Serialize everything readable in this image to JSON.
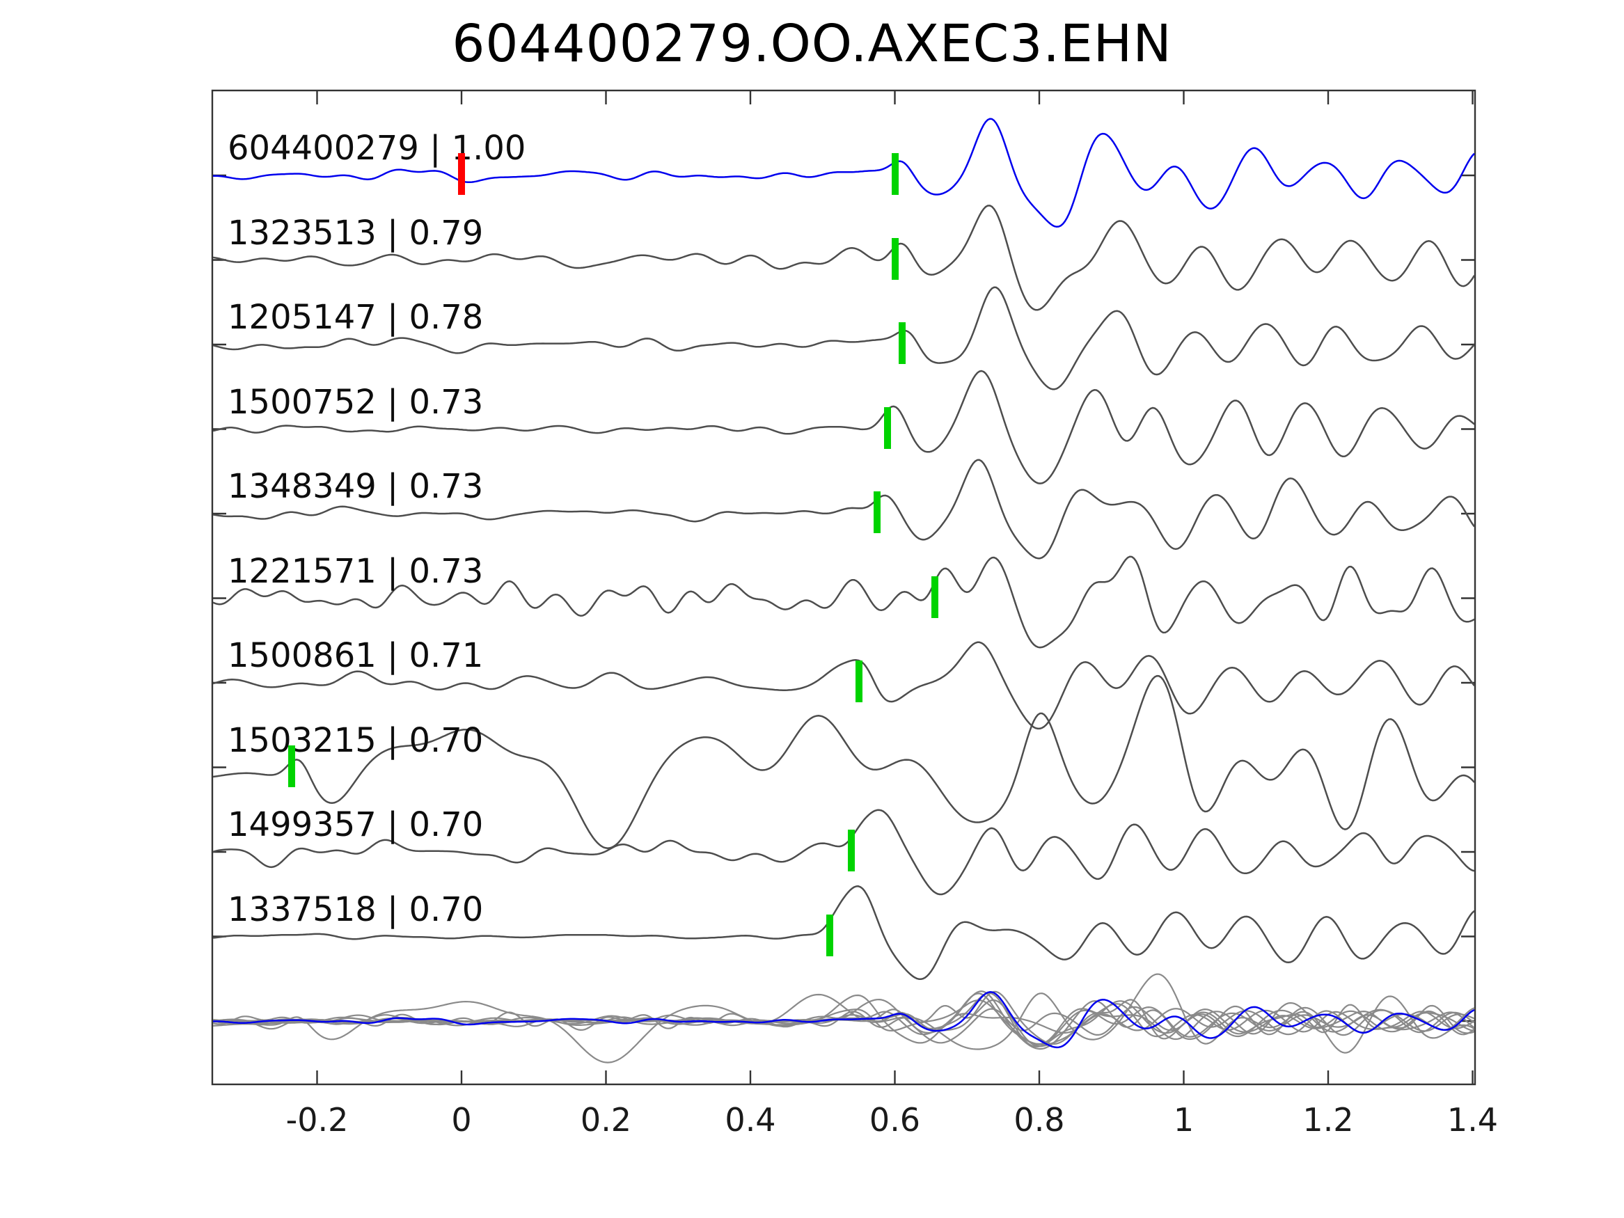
{
  "header": {
    "title": "604400279.OO.AXEC3.EHN"
  },
  "chart_data": {
    "type": "line",
    "title": "604400279.OO.AXEC3.EHN",
    "xlabel": "",
    "ylabel": "",
    "xlim": [
      -0.345,
      1.404
    ],
    "grid": false,
    "legend": "none",
    "x_ticks": [
      {
        "value": -0.2,
        "label": "-0.2"
      },
      {
        "value": 0,
        "label": "0"
      },
      {
        "value": 0.2,
        "label": "0.2"
      },
      {
        "value": 0.4,
        "label": "0.4"
      },
      {
        "value": 0.6,
        "label": "0.6"
      },
      {
        "value": 0.8,
        "label": "0.8"
      },
      {
        "value": 1,
        "label": "1"
      },
      {
        "value": 1.2,
        "label": "1.2"
      },
      {
        "value": 1.4,
        "label": "1.4"
      }
    ],
    "colors": {
      "axis": "#333333",
      "detection_trace": "#4d4d4d",
      "template_trace": "#0000ee",
      "stack_trace": "#8a8a8a",
      "pick_marker": "#00d300",
      "template_origin_marker": "#ff0000",
      "label_text": "#0d0d0d"
    },
    "traces": [
      {
        "id": "604400279",
        "cc": "1.00",
        "label": "604400279 | 1.00",
        "role": "template",
        "pick": 0.6,
        "template_marker": 0.0,
        "synth": {
          "seed": 11,
          "pre": 0.14,
          "post": 1.0,
          "burst": 0.73,
          "fscale": 1.0,
          "amp": 1.0
        }
      },
      {
        "id": "1323513",
        "cc": "0.79",
        "label": "1323513 | 0.79",
        "role": "detection",
        "pick": 0.6,
        "synth": {
          "seed": 22,
          "pre": 0.2,
          "post": 1.0,
          "burst": 0.73,
          "fscale": 1.0,
          "amp": 1.0
        }
      },
      {
        "id": "1205147",
        "cc": "0.78",
        "label": "1205147 | 0.78",
        "role": "detection",
        "pick": 0.61,
        "synth": {
          "seed": 33,
          "pre": 0.16,
          "post": 1.0,
          "burst": 0.74,
          "fscale": 1.0,
          "amp": 1.0
        }
      },
      {
        "id": "1500752",
        "cc": "0.73",
        "label": "1500752 | 0.73",
        "role": "detection",
        "pick": 0.59,
        "synth": {
          "seed": 44,
          "pre": 0.09,
          "post": 1.0,
          "burst": 0.725,
          "fscale": 1.0,
          "amp": 1.0
        }
      },
      {
        "id": "1348349",
        "cc": "0.73",
        "label": "1348349 | 0.73",
        "role": "detection",
        "pick": 0.575,
        "synth": {
          "seed": 55,
          "pre": 0.13,
          "post": 1.0,
          "burst": 0.715,
          "fscale": 1.0,
          "amp": 1.0
        }
      },
      {
        "id": "1221571",
        "cc": "0.73",
        "label": "1221571 | 0.73",
        "role": "detection",
        "pick": 0.655,
        "synth": {
          "seed": 66,
          "pre": 0.38,
          "post": 1.0,
          "burst": 0.735,
          "fscale": 1.2,
          "amp": 1.0
        }
      },
      {
        "id": "1500861",
        "cc": "0.71",
        "label": "1500861 | 0.71",
        "role": "detection",
        "pick": 0.55,
        "synth": {
          "seed": 77,
          "pre": 0.3,
          "post": 1.0,
          "burst": 0.72,
          "fscale": 0.9,
          "amp": 1.0
        }
      },
      {
        "id": "1503215",
        "cc": "0.70",
        "label": "1503215 | 0.70",
        "role": "detection",
        "pick": -0.235,
        "synth": {
          "seed": 88,
          "pre": 1.0,
          "post": 0.95,
          "burst": 0.8,
          "fscale": 0.5,
          "amp": 1.3
        }
      },
      {
        "id": "1499357",
        "cc": "0.70",
        "label": "1499357 | 0.70",
        "role": "detection",
        "pick": 0.54,
        "synth": {
          "seed": 99,
          "pre": 0.26,
          "post": 0.85,
          "burst": 0.585,
          "fscale": 1.0,
          "amp": 1.0
        }
      },
      {
        "id": "1337518",
        "cc": "0.70",
        "label": "1337518 | 0.70",
        "role": "detection",
        "pick": 0.51,
        "synth": {
          "seed": 110,
          "pre": 0.06,
          "post": 0.9,
          "burst": 0.555,
          "fscale": 0.9,
          "amp": 1.0
        }
      }
    ],
    "stack_row": {
      "description": "all detection waveforms overlaid in gray with the template overlaid in blue",
      "highlight_id": "604400279"
    }
  }
}
